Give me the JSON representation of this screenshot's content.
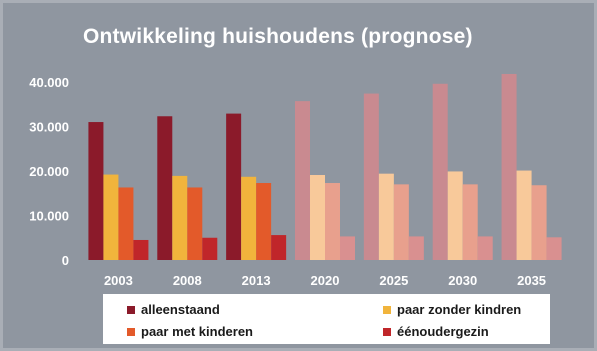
{
  "chart_data": {
    "type": "bar",
    "title": "Ontwikkeling huishoudens (prognose)",
    "categories": [
      "2003",
      "2008",
      "2013",
      "2020",
      "2025",
      "2030",
      "2035"
    ],
    "projection_from_index": 3,
    "ylim": [
      0,
      45000
    ],
    "yticks": [
      "0",
      "10.000",
      "20.000",
      "30.000",
      "40.000"
    ],
    "ytick_values": [
      0,
      10000,
      20000,
      30000,
      40000
    ],
    "legend_position": "bottom",
    "series": [
      {
        "name": "alleenstaand",
        "color": "#8b1a2a",
        "color_projection": "#c98a90",
        "values": [
          31000,
          32300,
          32900,
          35700,
          37400,
          39600,
          41800
        ]
      },
      {
        "name": "paar zonder kindren",
        "color": "#f1b43c",
        "color_projection": "#f8c99a",
        "values": [
          19200,
          18900,
          18700,
          19100,
          19400,
          19900,
          20100
        ]
      },
      {
        "name": "paar met kinderen",
        "color": "#e35a2a",
        "color_projection": "#e8a08d",
        "values": [
          16300,
          16300,
          17300,
          17300,
          17000,
          17000,
          16800
        ]
      },
      {
        "name": "éénoudergezin",
        "color": "#c0262a",
        "color_projection": "#d99090",
        "values": [
          4500,
          5000,
          5600,
          5300,
          5300,
          5300,
          5100
        ]
      }
    ]
  }
}
